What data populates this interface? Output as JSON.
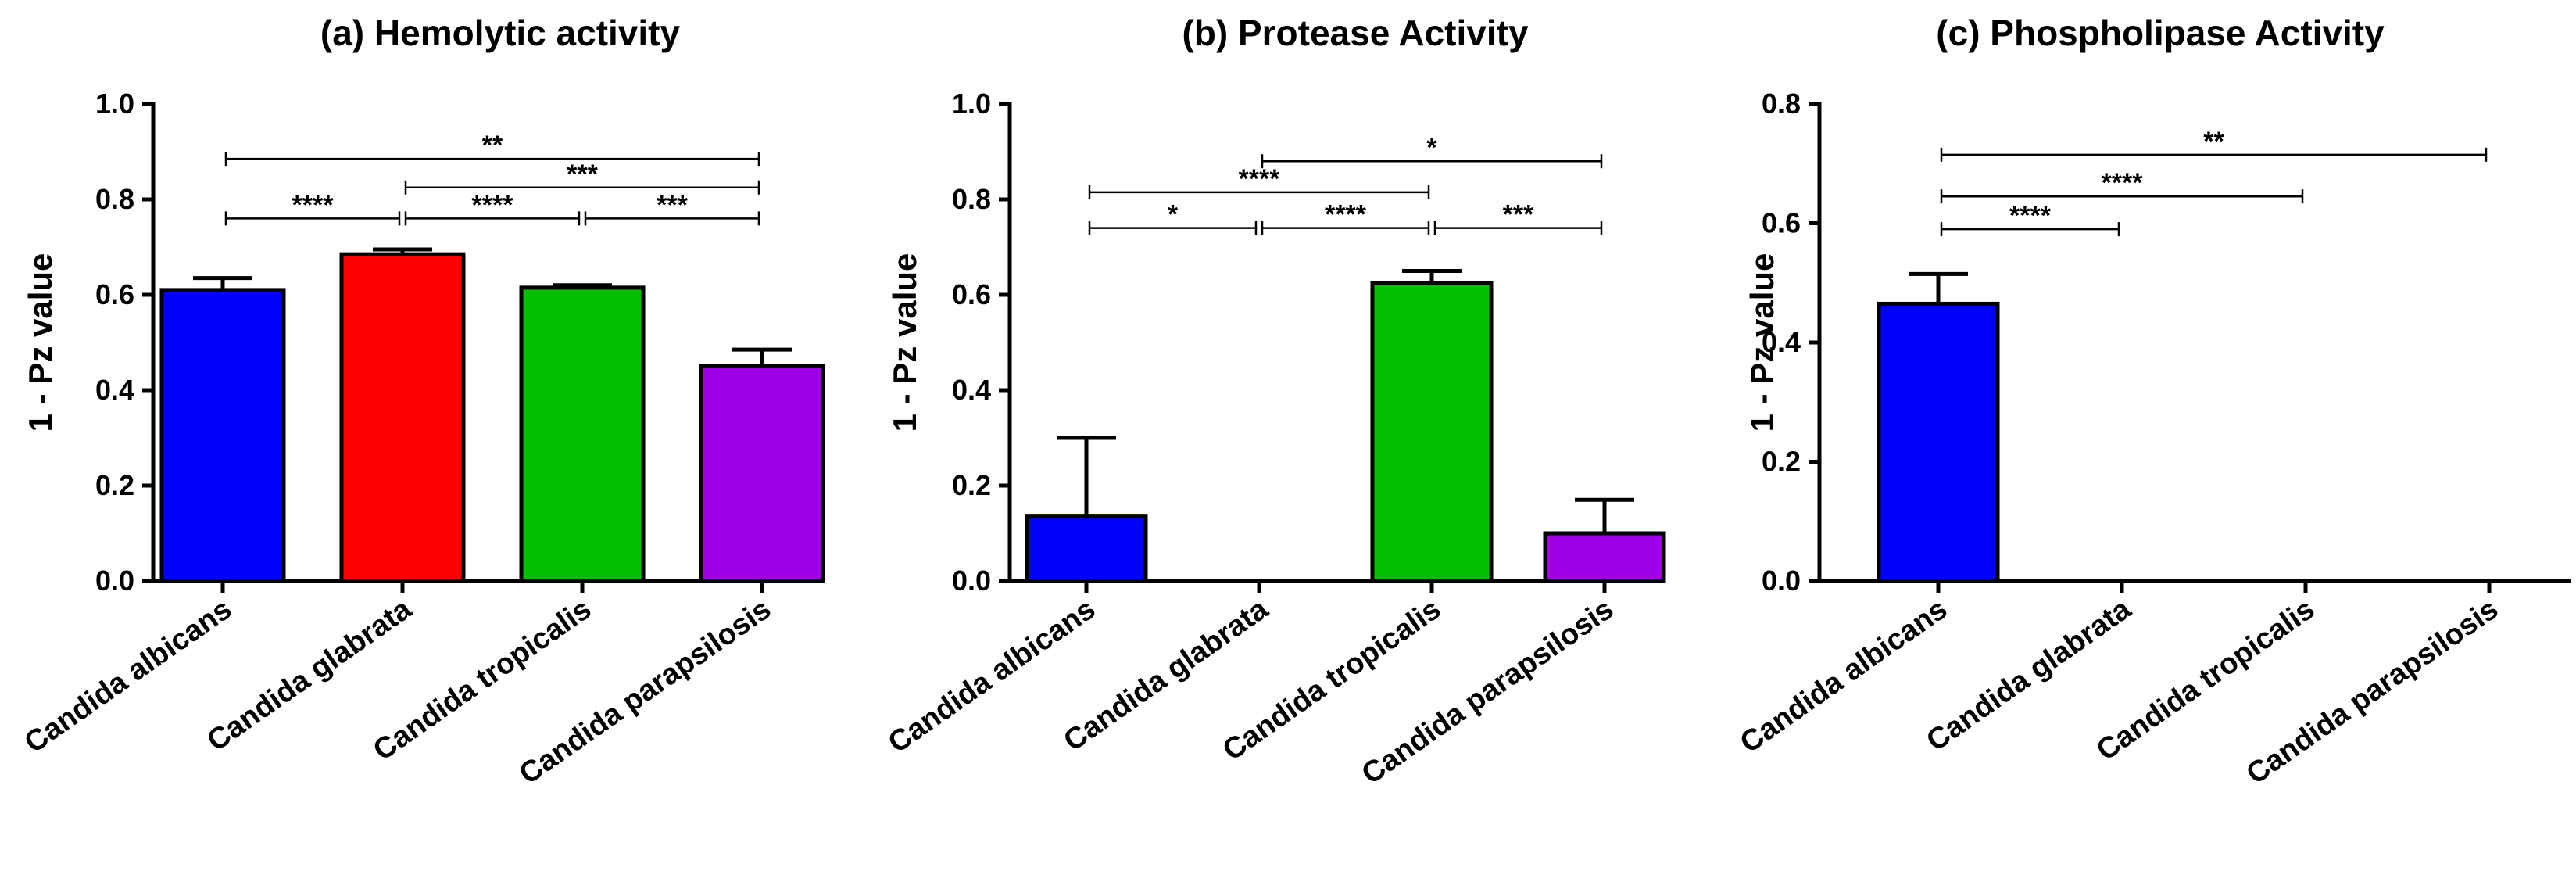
{
  "chart_data": [
    {
      "type": "bar",
      "title": "(a)   Hemolytic activity",
      "ylabel": "1 - Pz value",
      "ylim": [
        0,
        1.0
      ],
      "yticks": [
        "0.0",
        "0.2",
        "0.4",
        "0.6",
        "0.8",
        "1.0"
      ],
      "ytick_values": [
        0,
        0.2,
        0.4,
        0.6,
        0.8,
        1.0
      ],
      "categories": [
        "Candida albicans",
        "Candida glabrata",
        "Candida tropicalis",
        "Candida parapsilosis"
      ],
      "values": [
        0.61,
        0.685,
        0.615,
        0.45
      ],
      "errors": [
        0.025,
        0.01,
        0.005,
        0.035
      ],
      "colors": [
        "#0000ff",
        "#ff0000",
        "#00c000",
        "#a000e6"
      ],
      "significance": [
        {
          "from": 0,
          "to": 1,
          "value": 0.76,
          "label": "****"
        },
        {
          "from": 1,
          "to": 2,
          "value": 0.76,
          "label": "****"
        },
        {
          "from": 2,
          "to": 3,
          "value": 0.76,
          "label": "***"
        },
        {
          "from": 1,
          "to": 3,
          "value": 0.825,
          "label": "***"
        },
        {
          "from": 0,
          "to": 3,
          "value": 0.885,
          "label": "**"
        }
      ]
    },
    {
      "type": "bar",
      "title": "(b)   Protease Activity",
      "ylabel": "1 - Pz value",
      "ylim": [
        0,
        1.0
      ],
      "yticks": [
        "0.0",
        "0.2",
        "0.4",
        "0.6",
        "0.8",
        "1.0"
      ],
      "ytick_values": [
        0,
        0.2,
        0.4,
        0.6,
        0.8,
        1.0
      ],
      "categories": [
        "Candida albicans",
        "Candida glabrata",
        "Candida tropicalis",
        "Candida parapsilosis"
      ],
      "values": [
        0.135,
        0.0,
        0.625,
        0.1
      ],
      "errors": [
        0.165,
        0.0,
        0.025,
        0.07
      ],
      "colors": [
        "#0000ff",
        "#ff0000",
        "#00c000",
        "#a000e6"
      ],
      "significance": [
        {
          "from": 0,
          "to": 1,
          "value": 0.74,
          "label": "*"
        },
        {
          "from": 1,
          "to": 2,
          "value": 0.74,
          "label": "****"
        },
        {
          "from": 2,
          "to": 3,
          "value": 0.74,
          "label": "***"
        },
        {
          "from": 0,
          "to": 2,
          "value": 0.815,
          "label": "****"
        },
        {
          "from": 1,
          "to": 3,
          "value": 0.88,
          "label": "*"
        }
      ]
    },
    {
      "type": "bar",
      "title": "(c)   Phospholipase Activity",
      "ylabel": "1 - Pz value",
      "ylim": [
        0,
        0.8
      ],
      "yticks": [
        "0.0",
        "0.2",
        "0.4",
        "0.6",
        "0.8"
      ],
      "ytick_values": [
        0,
        0.2,
        0.4,
        0.6,
        0.8
      ],
      "categories": [
        "Candida albicans",
        "Candida glabrata",
        "Candida tropicalis",
        "Candida parapsilosis"
      ],
      "values": [
        0.465,
        0.0,
        0.0,
        0.0
      ],
      "errors": [
        0.05,
        0.0,
        0.0,
        0.0
      ],
      "colors": [
        "#0000ff",
        "#ff0000",
        "#00c000",
        "#a000e6"
      ],
      "significance": [
        {
          "from": 0,
          "to": 1,
          "value": 0.59,
          "label": "****"
        },
        {
          "from": 0,
          "to": 2,
          "value": 0.645,
          "label": "****"
        },
        {
          "from": 0,
          "to": 3,
          "value": 0.715,
          "label": "**"
        }
      ]
    }
  ]
}
